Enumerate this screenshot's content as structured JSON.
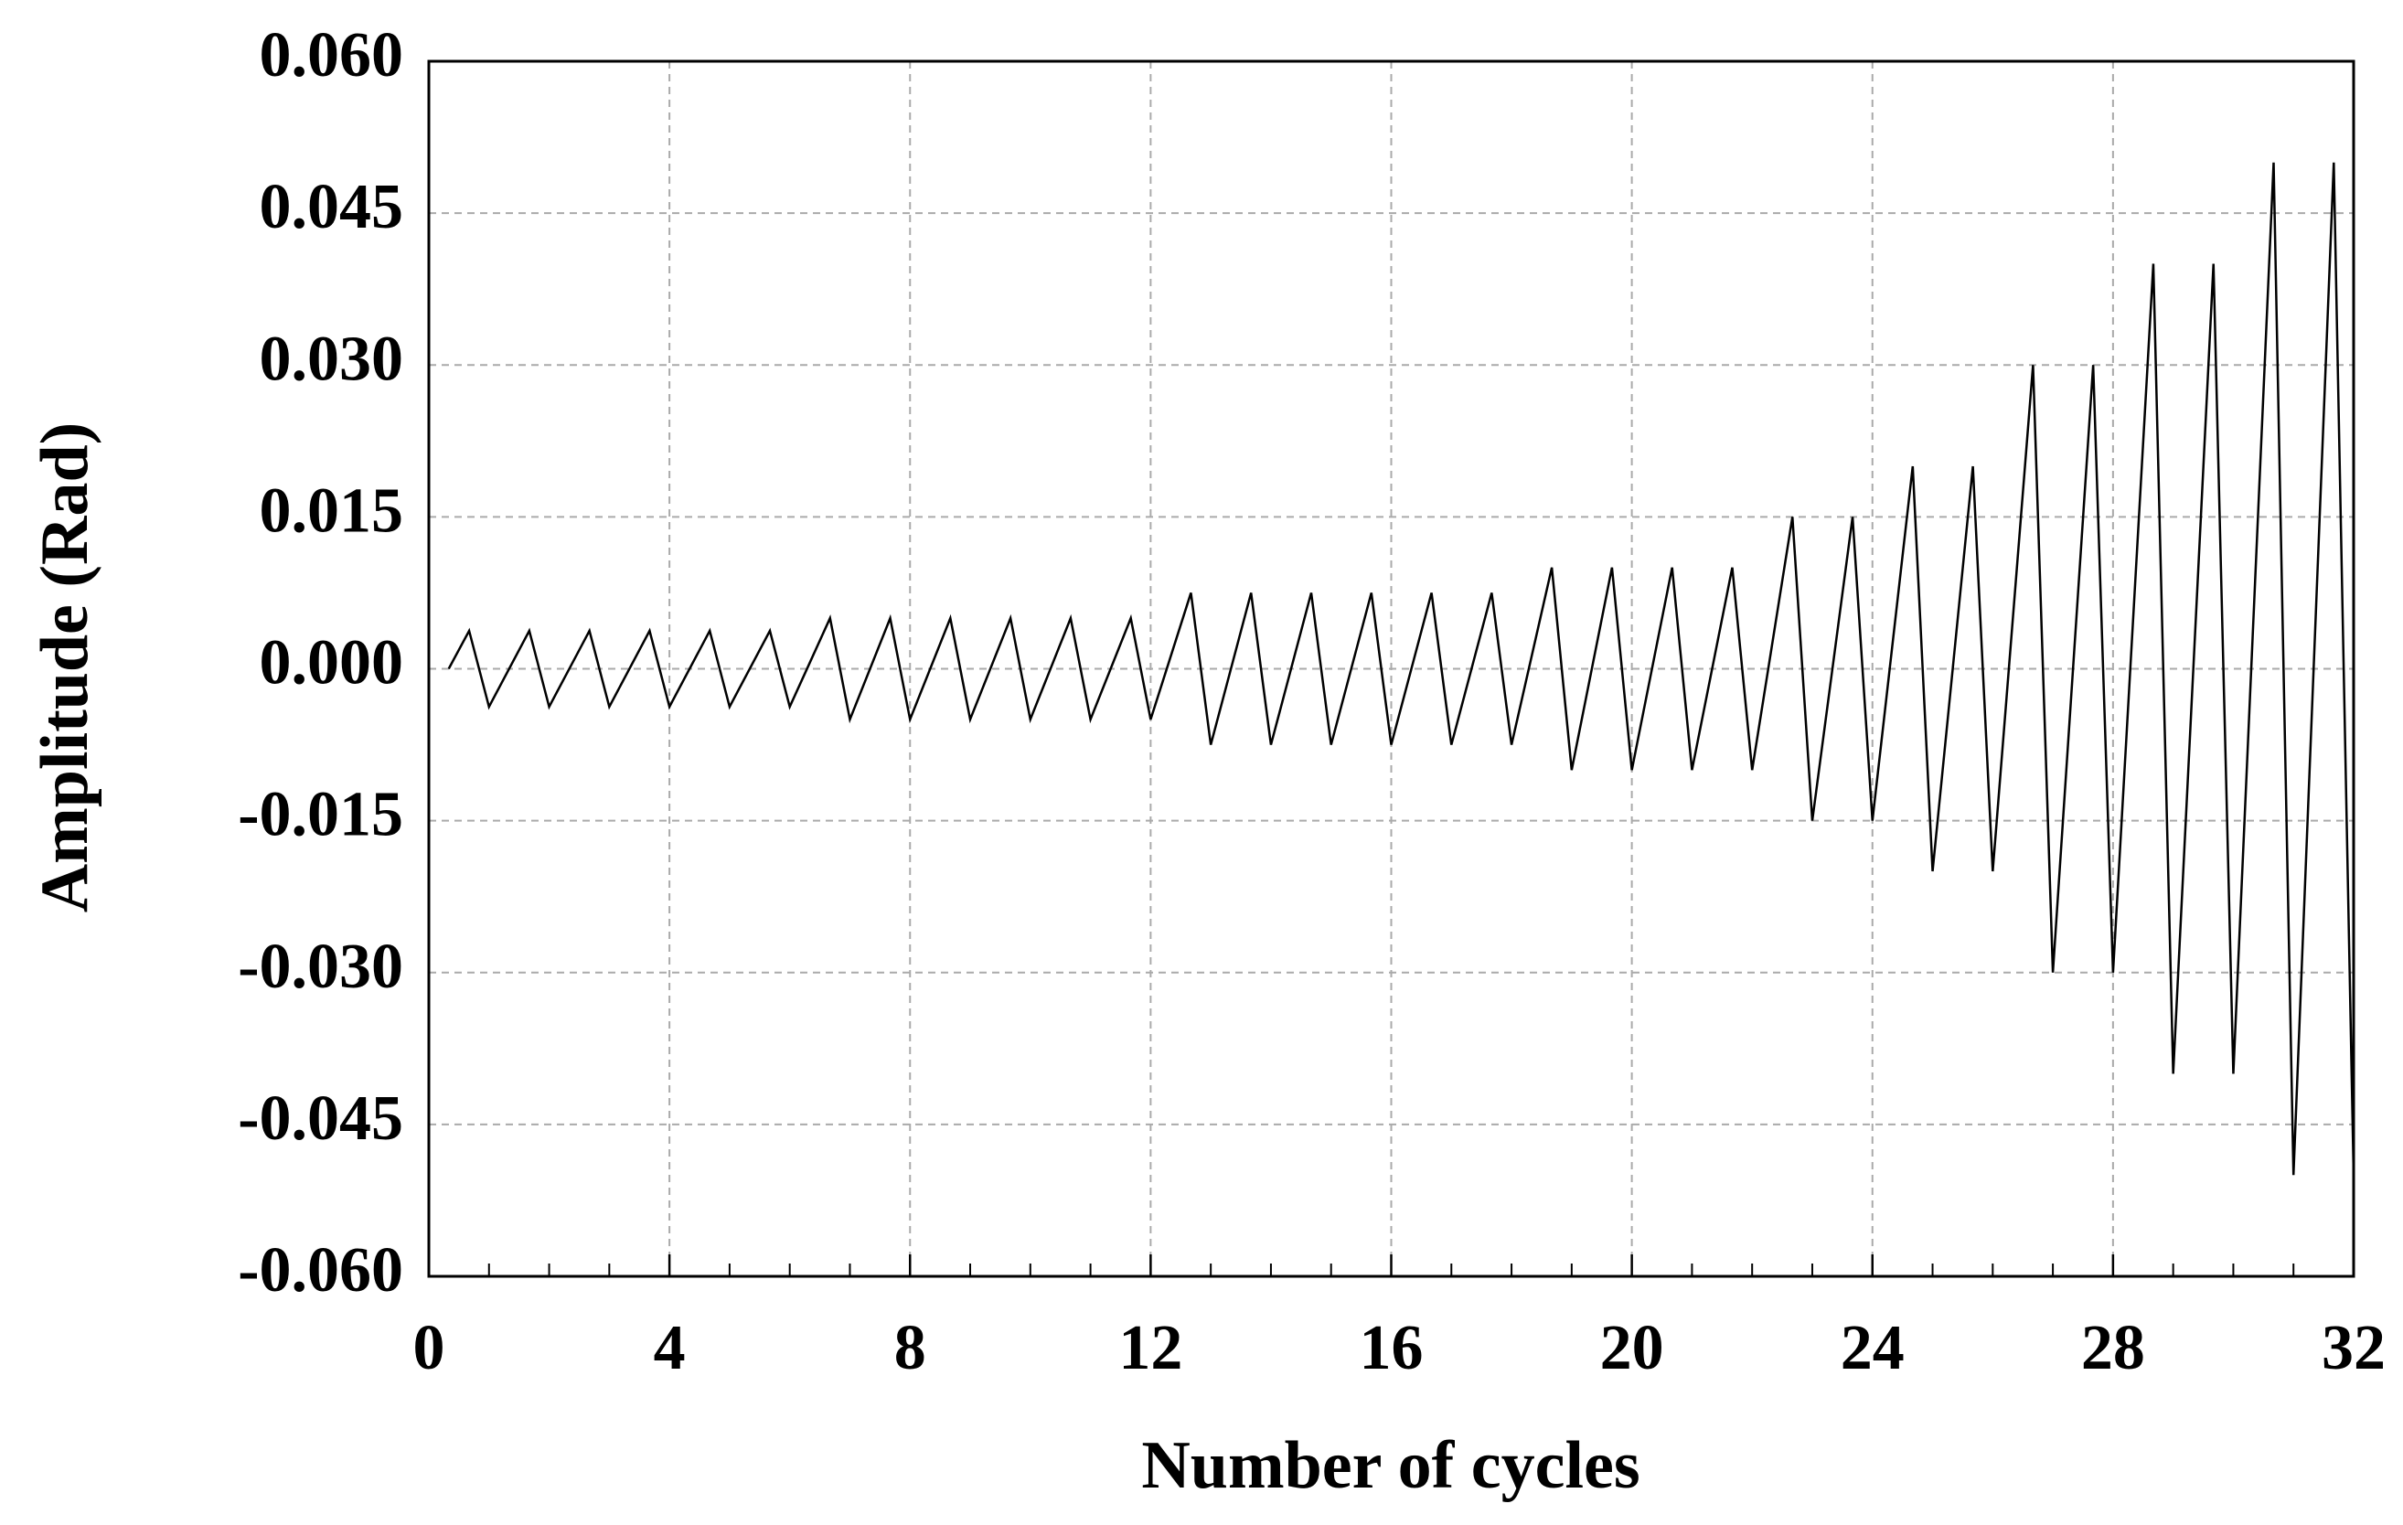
{
  "chart_data": {
    "type": "line",
    "xlabel": "Number of cycles",
    "ylabel": "Amplitude (Rad)",
    "xlim": [
      0,
      32
    ],
    "xticks": [
      0,
      4,
      8,
      12,
      16,
      20,
      24,
      28,
      32
    ],
    "ylim": [
      -0.06,
      0.06
    ],
    "yticks": [
      {
        "value": -0.06,
        "label": "-0.060"
      },
      {
        "value": -0.045,
        "label": "-0.045"
      },
      {
        "value": -0.03,
        "label": "-0.030"
      },
      {
        "value": -0.015,
        "label": "-0.015"
      },
      {
        "value": 0,
        "label": "0.000"
      },
      {
        "value": 0.015,
        "label": "0.015"
      },
      {
        "value": 0.03,
        "label": "0.030"
      },
      {
        "value": 0.045,
        "label": "0.045"
      },
      {
        "value": 0.06,
        "label": "0.060"
      }
    ],
    "grid": true,
    "series": [
      {
        "color": "#000000",
        "x": [
          0.33,
          0.67,
          1,
          1.67,
          2,
          2.67,
          3,
          3.67,
          4,
          4.67,
          5,
          5.67,
          6,
          6.67,
          7,
          7.67,
          8,
          8.67,
          9,
          9.67,
          10,
          10.67,
          11,
          11.67,
          12,
          12.67,
          13,
          13.67,
          14,
          14.67,
          15,
          15.67,
          16,
          16.67,
          17,
          17.67,
          18,
          18.67,
          19,
          19.67,
          20,
          20.67,
          21,
          21.67,
          22,
          22.67,
          23,
          23.67,
          24,
          24.67,
          25,
          25.67,
          26,
          26.67,
          27,
          27.67,
          28,
          28.67,
          29,
          29.67,
          30,
          30.67,
          31,
          31.67,
          32
        ],
        "values": [
          0,
          0.00375,
          -0.00375,
          0.00375,
          -0.00375,
          0.00375,
          -0.00375,
          0.00375,
          -0.00375,
          0.00375,
          -0.00375,
          0.00375,
          -0.00375,
          0.005,
          -0.005,
          0.005,
          -0.005,
          0.005,
          -0.005,
          0.005,
          -0.005,
          0.005,
          -0.005,
          0.005,
          -0.005,
          0.0075,
          -0.0075,
          0.0075,
          -0.0075,
          0.0075,
          -0.0075,
          0.0075,
          -0.0075,
          0.0075,
          -0.0075,
          0.0075,
          -0.0075,
          0.01,
          -0.01,
          0.01,
          -0.01,
          0.01,
          -0.01,
          0.01,
          -0.01,
          0.015,
          -0.015,
          0.015,
          -0.015,
          0.02,
          -0.02,
          0.02,
          -0.02,
          0.03,
          -0.03,
          0.03,
          -0.03,
          0.04,
          -0.04,
          0.04,
          -0.04,
          0.05,
          -0.05,
          0.05,
          -0.05
        ]
      }
    ]
  }
}
